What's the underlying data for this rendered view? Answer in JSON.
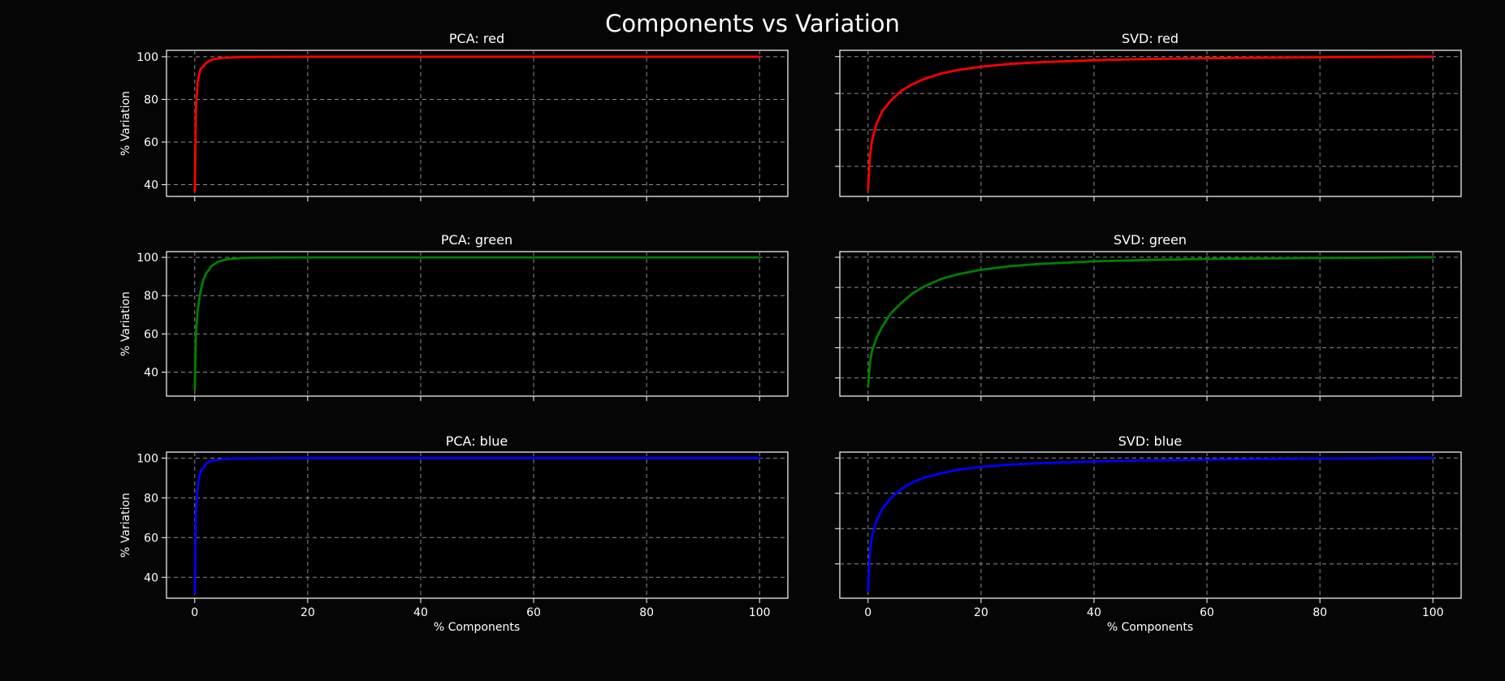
{
  "figure": {
    "title": "Components vs Variation"
  },
  "colors": {
    "background": "#050505",
    "axes_background": "#000000",
    "grid": "#8c8c8c",
    "text": "#ffffff"
  },
  "chart_data": [
    {
      "type": "line",
      "title": "PCA: red",
      "xlabel": "",
      "ylabel": "% Variation",
      "xlim": [
        -5,
        105
      ],
      "ylim": [
        34.5,
        103
      ],
      "xticks": [
        0,
        20,
        40,
        60,
        80,
        100
      ],
      "xtick_labels": [],
      "yticks": [
        40,
        60,
        80,
        100
      ],
      "ytick_labels": [
        "40",
        "60",
        "80",
        "100"
      ],
      "grid": true,
      "series": [
        {
          "color": "#ff0000",
          "x": [
            0,
            0.2,
            0.5,
            1,
            2,
            3,
            5,
            8,
            12,
            20,
            40,
            60,
            80,
            100
          ],
          "y": [
            37,
            75,
            88,
            94,
            97,
            98.7,
            99.5,
            99.8,
            99.9,
            100,
            100,
            100,
            100,
            100
          ]
        }
      ]
    },
    {
      "type": "line",
      "title": "SVD: red",
      "xlabel": "",
      "ylabel": "",
      "xlim": [
        -5,
        105
      ],
      "ylim": [
        33.5,
        103
      ],
      "xticks": [
        0,
        20,
        40,
        60,
        80,
        100
      ],
      "xtick_labels": [],
      "yticks": [
        47.8,
        65.2,
        82.5,
        100
      ],
      "ytick_labels": [],
      "grid": true,
      "series": [
        {
          "color": "#ff0000",
          "x": [
            0,
            0.3,
            0.7,
            1.5,
            2.5,
            4,
            6,
            8,
            10,
            13,
            16,
            20,
            25,
            30,
            40,
            50,
            60,
            80,
            100
          ],
          "y": [
            37,
            52,
            60,
            68,
            74,
            79,
            84,
            87,
            89.5,
            92,
            93.7,
            95.2,
            96.5,
            97.3,
            98.3,
            98.9,
            99.3,
            99.7,
            100
          ]
        }
      ]
    },
    {
      "type": "line",
      "title": "PCA: green",
      "xlabel": "",
      "ylabel": "% Variation",
      "xlim": [
        -5,
        105
      ],
      "ylim": [
        27.5,
        103
      ],
      "xticks": [
        0,
        20,
        40,
        60,
        80,
        100
      ],
      "xtick_labels": [],
      "yticks": [
        40,
        60,
        80,
        100
      ],
      "ytick_labels": [
        "40",
        "60",
        "80",
        "100"
      ],
      "grid": true,
      "series": [
        {
          "color": "#008000",
          "x": [
            0,
            0.2,
            0.5,
            1,
            1.5,
            2,
            3,
            4,
            5,
            6,
            8,
            10,
            15,
            20,
            40,
            60,
            80,
            100
          ],
          "y": [
            31,
            60,
            72,
            82,
            88,
            91.5,
            95.5,
            97.5,
            98.5,
            99.1,
            99.6,
            99.8,
            99.95,
            100,
            100,
            100,
            100,
            100
          ]
        }
      ]
    },
    {
      "type": "line",
      "title": "SVD: green",
      "xlabel": "",
      "ylabel": "",
      "xlim": [
        -5,
        105
      ],
      "ylim": [
        26,
        103
      ],
      "xticks": [
        0,
        20,
        40,
        60,
        80,
        100
      ],
      "xtick_labels": [],
      "yticks": [
        35.7,
        51.8,
        67.8,
        83.9,
        100
      ],
      "ytick_labels": [],
      "grid": true,
      "series": [
        {
          "color": "#008000",
          "x": [
            0,
            0.3,
            0.7,
            1.5,
            2.5,
            4,
            6,
            8,
            10,
            13,
            16,
            20,
            25,
            30,
            40,
            50,
            60,
            80,
            100
          ],
          "y": [
            31,
            43,
            50,
            57,
            63,
            70,
            76,
            81,
            84.5,
            88.5,
            91,
            93.3,
            95.2,
            96.4,
            97.8,
            98.6,
            99.1,
            99.6,
            100
          ]
        }
      ]
    },
    {
      "type": "line",
      "title": "PCA: blue",
      "xlabel": "% Components",
      "ylabel": "% Variation",
      "xlim": [
        -5,
        105
      ],
      "ylim": [
        29.5,
        103
      ],
      "xticks": [
        0,
        20,
        40,
        60,
        80,
        100
      ],
      "xtick_labels": [
        "0",
        "20",
        "40",
        "60",
        "80",
        "100"
      ],
      "yticks": [
        40,
        60,
        80,
        100
      ],
      "ytick_labels": [
        "40",
        "60",
        "80",
        "100"
      ],
      "grid": true,
      "series": [
        {
          "color": "#0000ff",
          "x": [
            0,
            0.2,
            0.5,
            1,
            2,
            3,
            5,
            8,
            12,
            20,
            40,
            60,
            80,
            100
          ],
          "y": [
            32,
            72,
            86,
            93,
            97,
            98.7,
            99.5,
            99.8,
            99.9,
            100,
            100,
            100,
            100,
            100
          ]
        }
      ]
    },
    {
      "type": "line",
      "title": "SVD: blue",
      "xlabel": "% Components",
      "ylabel": "",
      "xlim": [
        -5,
        105
      ],
      "ylim": [
        28.5,
        103
      ],
      "xticks": [
        0,
        20,
        40,
        60,
        80,
        100
      ],
      "xtick_labels": [
        "0",
        "20",
        "40",
        "60",
        "80",
        "100"
      ],
      "yticks": [
        46,
        64,
        82,
        100
      ],
      "ytick_labels": [],
      "grid": true,
      "series": [
        {
          "color": "#0000ff",
          "x": [
            0,
            0.3,
            0.7,
            1.5,
            2.5,
            4,
            6,
            8,
            10,
            13,
            16,
            20,
            25,
            30,
            40,
            50,
            60,
            80,
            100
          ],
          "y": [
            32,
            52,
            60,
            68,
            74,
            79.5,
            84.5,
            87.7,
            90,
            92.3,
            94,
            95.5,
            96.6,
            97.3,
            98.2,
            98.8,
            99.2,
            99.7,
            100
          ]
        }
      ]
    }
  ]
}
